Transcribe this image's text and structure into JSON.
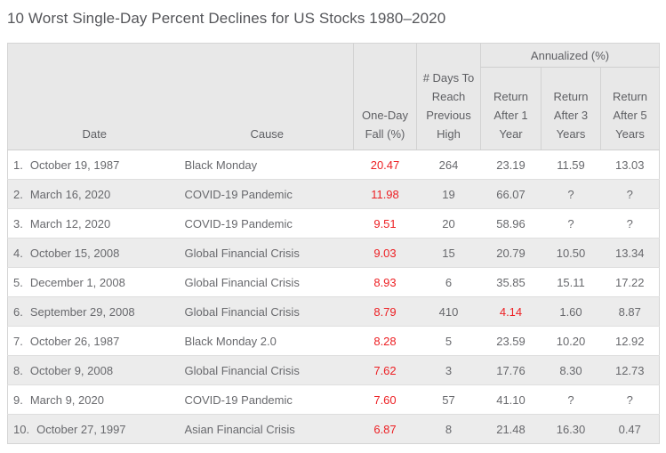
{
  "title": "10 Worst Single-Day Percent Declines for US Stocks 1980–2020",
  "colors": {
    "negative_value_red": "#ed2024",
    "header_background": "#e8e8e8",
    "alternate_row_background": "#ececec",
    "text_gray": "#68696d",
    "border_gray": "#d2d2d2"
  },
  "chart_data": {
    "type": "table",
    "title": "10 Worst Single-Day Percent Declines for US Stocks 1980–2020",
    "column_group": "Annualized (%)",
    "column_group_span": [
      "Return After 1 Year",
      "Return After 3 Years",
      "Return After 5 Years"
    ],
    "columns": [
      "Date",
      "Cause",
      "One-Day Fall (%)",
      "# Days To Reach Previous High",
      "Return After 1 Year",
      "Return After 3 Years",
      "Return After 5 Years"
    ],
    "rows": [
      {
        "rank": "1.",
        "date": "October 19, 1987",
        "cause": "Black Monday",
        "fall": "20.47",
        "days": "264",
        "return1": "23.19",
        "return3": "11.59",
        "return5": "13.03",
        "red": [
          "fall"
        ]
      },
      {
        "rank": "2.",
        "date": "March 16, 2020",
        "cause": "COVID-19 Pandemic",
        "fall": "11.98",
        "days": "19",
        "return1": "66.07",
        "return3": "?",
        "return5": "?",
        "red": [
          "fall"
        ]
      },
      {
        "rank": "3.",
        "date": "March 12, 2020",
        "cause": "COVID-19 Pandemic",
        "fall": "9.51",
        "days": "20",
        "return1": "58.96",
        "return3": "?",
        "return5": "?",
        "red": [
          "fall"
        ]
      },
      {
        "rank": "4.",
        "date": "October 15, 2008",
        "cause": "Global Financial Crisis",
        "fall": "9.03",
        "days": "15",
        "return1": "20.79",
        "return3": "10.50",
        "return5": "13.34",
        "red": [
          "fall"
        ]
      },
      {
        "rank": "5.",
        "date": "December 1, 2008",
        "cause": "Global Financial Crisis",
        "fall": "8.93",
        "days": "6",
        "return1": "35.85",
        "return3": "15.11",
        "return5": "17.22",
        "red": [
          "fall"
        ]
      },
      {
        "rank": "6.",
        "date": "September 29, 2008",
        "cause": "Global Financial Crisis",
        "fall": "8.79",
        "days": "410",
        "return1": "4.14",
        "return3": "1.60",
        "return5": "8.87",
        "red": [
          "fall",
          "return1"
        ]
      },
      {
        "rank": "7.",
        "date": "October 26, 1987",
        "cause": "Black Monday 2.0",
        "fall": "8.28",
        "days": "5",
        "return1": "23.59",
        "return3": "10.20",
        "return5": "12.92",
        "red": [
          "fall"
        ]
      },
      {
        "rank": "8.",
        "date": "October 9, 2008",
        "cause": "Global Financial Crisis",
        "fall": "7.62",
        "days": "3",
        "return1": "17.76",
        "return3": "8.30",
        "return5": "12.73",
        "red": [
          "fall"
        ]
      },
      {
        "rank": "9.",
        "date": "March 9, 2020",
        "cause": "COVID-19 Pandemic",
        "fall": "7.60",
        "days": "57",
        "return1": "41.10",
        "return3": "?",
        "return5": "?",
        "red": [
          "fall"
        ]
      },
      {
        "rank": "10.",
        "date": "October 27, 1997",
        "cause": "Asian Financial Crisis",
        "fall": "6.87",
        "days": "8",
        "return1": "21.48",
        "return3": "16.30",
        "return5": "0.47",
        "red": [
          "fall"
        ]
      }
    ]
  }
}
